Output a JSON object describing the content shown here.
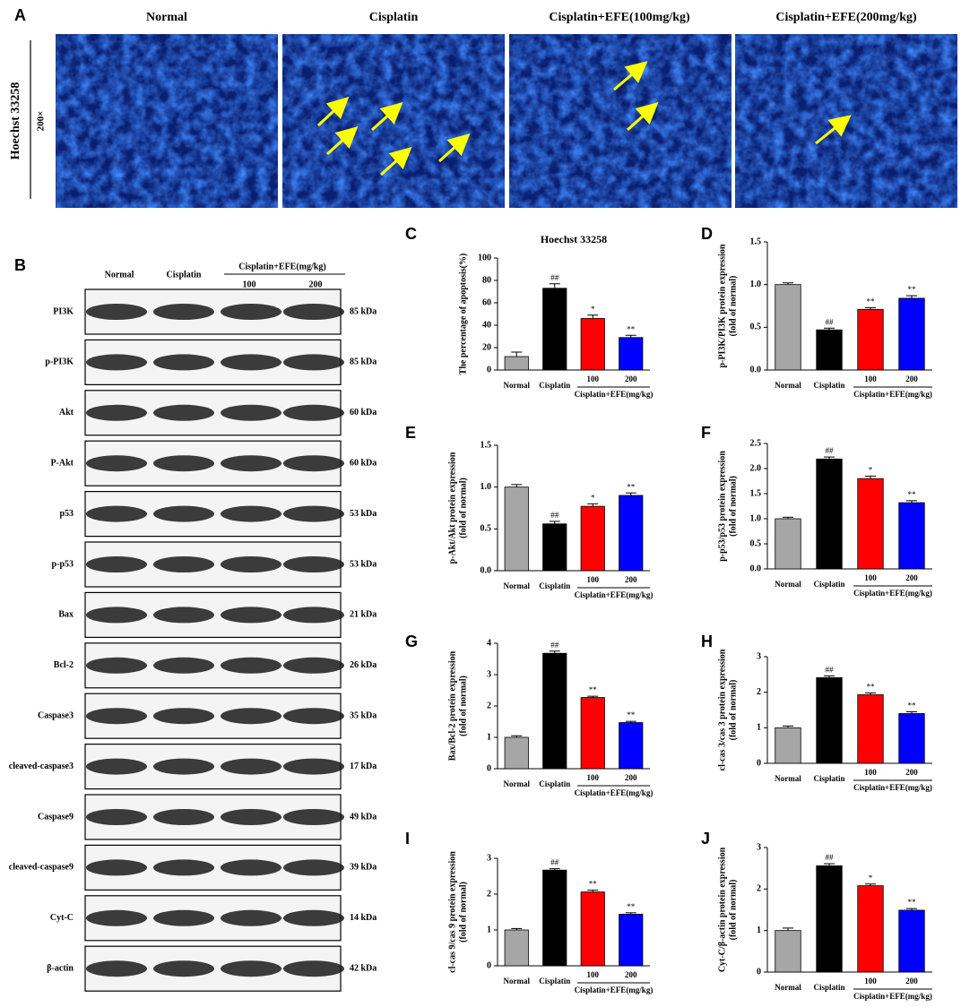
{
  "panel_a": {
    "label": "A",
    "columns": [
      "Normal",
      "Cisplatin",
      "Cisplatin+EFE(100mg/kg)",
      "Cisplatin+EFE(200mg/kg)"
    ],
    "row_label": "Hoechst 33258",
    "magnification": "200×"
  },
  "panel_b": {
    "label": "B",
    "lanes": [
      "Normal",
      "Cisplatin"
    ],
    "group_label": "Cisplatin+EFE(mg/kg)",
    "doses": [
      "100",
      "200"
    ],
    "proteins": [
      {
        "name": "PI3K",
        "size": "85 kDa"
      },
      {
        "name": "p-PI3K",
        "size": "85 kDa"
      },
      {
        "name": "Akt",
        "size": "60 kDa"
      },
      {
        "name": "P-Akt",
        "size": "60 kDa"
      },
      {
        "name": "p53",
        "size": "53 kDa"
      },
      {
        "name": "p-p53",
        "size": "53 kDa"
      },
      {
        "name": "Bax",
        "size": "21 kDa"
      },
      {
        "name": "Bcl-2",
        "size": "26 kDa"
      },
      {
        "name": "Caspase3",
        "size": "35 kDa"
      },
      {
        "name": "cleaved-caspase3",
        "size": "17 kDa"
      },
      {
        "name": "Caspase9",
        "size": "49 kDa"
      },
      {
        "name": "cleaved-caspase9",
        "size": "39 kDa"
      },
      {
        "name": "Cyt-C",
        "size": "14 kDa"
      },
      {
        "name": "β-actin",
        "size": "42 kDa"
      }
    ]
  },
  "chart_data": [
    {
      "type": "bar",
      "panel_label": "C",
      "title": "Hoechst 33258",
      "y_label": [
        "The percentage of apoptosis(%)"
      ],
      "categories": [
        "Normal",
        "Cisplatin",
        "100",
        "200"
      ],
      "group_label": "Cisplatin+EFE(mg/kg)",
      "values": [
        12,
        73,
        46,
        29
      ],
      "errors": [
        4,
        4,
        3,
        2
      ],
      "annotations": [
        null,
        "##",
        "*",
        "**"
      ],
      "colors": [
        "#a6a6a6",
        "#000000",
        "#ff0000",
        "#0000ff"
      ],
      "ylim": [
        0,
        100
      ],
      "yticks": [
        0,
        20,
        40,
        60,
        80,
        100
      ]
    },
    {
      "type": "bar",
      "panel_label": "D",
      "y_label": [
        "p-PI3K/PI3K protein expression",
        "(fold of normal)"
      ],
      "categories": [
        "Normal",
        "Cisplatin",
        "100",
        "200"
      ],
      "group_label": "Cisplatin+EFE(mg/kg)",
      "values": [
        1.0,
        0.47,
        0.71,
        0.84
      ],
      "errors": [
        0.02,
        0.02,
        0.02,
        0.03
      ],
      "annotations": [
        null,
        "##",
        "**",
        "**"
      ],
      "colors": [
        "#a6a6a6",
        "#000000",
        "#ff0000",
        "#0000ff"
      ],
      "ylim": [
        0,
        1.5
      ],
      "yticks": [
        {
          "value": 0,
          "label": "0.0"
        },
        0.5,
        {
          "value": 1,
          "label": "1.0"
        },
        1.5
      ]
    },
    {
      "type": "bar",
      "panel_label": "E",
      "y_label": [
        "p-Akt/Akt protein expression",
        "(fold of normal)"
      ],
      "categories": [
        "Normal",
        "Cisplatin",
        "100",
        "200"
      ],
      "group_label": "Cisplatin+EFE(mg/kg)",
      "values": [
        1.0,
        0.56,
        0.77,
        0.9
      ],
      "errors": [
        0.03,
        0.03,
        0.03,
        0.03
      ],
      "annotations": [
        null,
        "##",
        "*",
        "**"
      ],
      "colors": [
        "#a6a6a6",
        "#000000",
        "#ff0000",
        "#0000ff"
      ],
      "ylim": [
        0,
        1.5
      ],
      "yticks": [
        {
          "value": 0,
          "label": "0.0"
        },
        0.5,
        {
          "value": 1,
          "label": "1.0"
        },
        1.5
      ]
    },
    {
      "type": "bar",
      "panel_label": "F",
      "y_label": [
        "p-p53/p53 protein expression",
        "(fold of  normal)"
      ],
      "categories": [
        "Normal",
        "Cisplatin",
        "100",
        "200"
      ],
      "group_label": "Cisplatin+EFE(mg/kg)",
      "values": [
        1.0,
        2.19,
        1.8,
        1.32
      ],
      "errors": [
        0.03,
        0.04,
        0.05,
        0.04
      ],
      "annotations": [
        null,
        "##",
        "*",
        "**"
      ],
      "colors": [
        "#a6a6a6",
        "#000000",
        "#ff0000",
        "#0000ff"
      ],
      "ylim": [
        0,
        2.5
      ],
      "yticks": [
        {
          "value": 0,
          "label": "0.0"
        },
        0.5,
        {
          "value": 1,
          "label": "1.0"
        },
        1.5,
        {
          "value": 2,
          "label": "2.0"
        },
        2.5
      ]
    },
    {
      "type": "bar",
      "panel_label": "G",
      "y_label": [
        "Bax/Bcl-2 protein expression",
        "(fold of normal)"
      ],
      "categories": [
        "Normal",
        "Cisplatin",
        "100",
        "200"
      ],
      "group_label": "Cisplatin+EFE(mg/kg)",
      "values": [
        1.0,
        3.68,
        2.27,
        1.47
      ],
      "errors": [
        0.05,
        0.07,
        0.04,
        0.04
      ],
      "annotations": [
        null,
        "##",
        "**",
        "**"
      ],
      "colors": [
        "#a6a6a6",
        "#000000",
        "#ff0000",
        "#0000ff"
      ],
      "ylim": [
        0,
        4
      ],
      "yticks": [
        0,
        1,
        2,
        3,
        4
      ]
    },
    {
      "type": "bar",
      "panel_label": "H",
      "y_label": [
        "cl-cas 3/cas 3 protein expression",
        "(fold of normal)"
      ],
      "categories": [
        "Normal",
        "Cisplatin",
        "100",
        "200"
      ],
      "group_label": "Cisplatin+EFE(mg/kg)",
      "values": [
        1.0,
        2.41,
        1.93,
        1.4
      ],
      "errors": [
        0.05,
        0.05,
        0.05,
        0.05
      ],
      "annotations": [
        null,
        "##",
        "**",
        "**"
      ],
      "colors": [
        "#a6a6a6",
        "#000000",
        "#ff0000",
        "#0000ff"
      ],
      "ylim": [
        0,
        3
      ],
      "yticks": [
        0,
        1,
        2,
        3
      ]
    },
    {
      "type": "bar",
      "panel_label": "I",
      "y_label": [
        "cl-cas 9/cas 9 protein expression",
        "(fold of normal)"
      ],
      "categories": [
        "Normal",
        "Cisplatin",
        "100",
        "200"
      ],
      "group_label": "Cisplatin+EFE(mg/kg)",
      "values": [
        1.0,
        2.67,
        2.06,
        1.44
      ],
      "errors": [
        0.04,
        0.04,
        0.05,
        0.04
      ],
      "annotations": [
        null,
        "##",
        "**",
        "**"
      ],
      "colors": [
        "#a6a6a6",
        "#000000",
        "#ff0000",
        "#0000ff"
      ],
      "ylim": [
        0,
        3
      ],
      "yticks": [
        0,
        1,
        2,
        3
      ]
    },
    {
      "type": "bar",
      "panel_label": "J",
      "y_label": [
        "Cyt-C/β-actin protein expression",
        "(fold of normal)"
      ],
      "categories": [
        "Normal",
        "Cisplatin",
        "100",
        "200"
      ],
      "group_label": "Cisplatin+EFE(mg/kg)",
      "values": [
        1.0,
        2.56,
        2.08,
        1.49
      ],
      "errors": [
        0.06,
        0.05,
        0.04,
        0.04
      ],
      "annotations": [
        null,
        "##",
        "*",
        "**"
      ],
      "colors": [
        "#a6a6a6",
        "#000000",
        "#ff0000",
        "#0000ff"
      ],
      "ylim": [
        0,
        3
      ],
      "yticks": [
        0,
        1,
        2,
        3
      ]
    }
  ]
}
